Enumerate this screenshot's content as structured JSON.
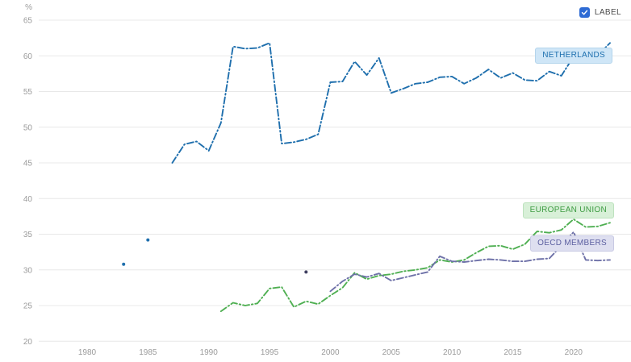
{
  "controls": {
    "label_text": "LABEL",
    "label_checked": true,
    "checkbox_color": "#2e6bd4"
  },
  "chart_data": {
    "type": "line",
    "unit": "%",
    "ylabel": "%",
    "ylim": [
      20,
      65
    ],
    "yticks": [
      20,
      25,
      30,
      35,
      40,
      45,
      50,
      55,
      60,
      65
    ],
    "xticks": [
      1980,
      1985,
      1990,
      1995,
      2000,
      2005,
      2010,
      2015,
      2020
    ],
    "grid": "horizontal",
    "legend_position": "inline-right-labels",
    "colors": {
      "grid": "#e8e8e8",
      "tick_text": "#9b9b9b"
    },
    "series": [
      {
        "name": "NETHERLANDS",
        "color": "#1f6fad",
        "style": "dash-dot",
        "isolated_points": [
          [
            1983,
            30.8
          ],
          [
            1985,
            34.2
          ]
        ],
        "points": [
          [
            1987,
            45.0
          ],
          [
            1988,
            47.6
          ],
          [
            1989,
            48.0
          ],
          [
            1990,
            46.7
          ],
          [
            1991,
            50.6
          ],
          [
            1992,
            61.3
          ],
          [
            1993,
            61.0
          ],
          [
            1994,
            61.1
          ],
          [
            1995,
            61.8
          ],
          [
            1996,
            47.7
          ],
          [
            1997,
            47.9
          ],
          [
            1998,
            48.3
          ],
          [
            1999,
            49.0
          ],
          [
            2000,
            56.3
          ],
          [
            2001,
            56.4
          ],
          [
            2002,
            59.2
          ],
          [
            2003,
            57.3
          ],
          [
            2004,
            59.7
          ],
          [
            2005,
            54.8
          ],
          [
            2006,
            55.4
          ],
          [
            2007,
            56.1
          ],
          [
            2008,
            56.3
          ],
          [
            2009,
            57.0
          ],
          [
            2010,
            57.1
          ],
          [
            2011,
            56.1
          ],
          [
            2012,
            56.9
          ],
          [
            2013,
            58.1
          ],
          [
            2014,
            56.9
          ],
          [
            2015,
            57.6
          ],
          [
            2016,
            56.6
          ],
          [
            2017,
            56.5
          ],
          [
            2018,
            57.8
          ],
          [
            2019,
            57.2
          ],
          [
            2020,
            59.9
          ],
          [
            2021,
            60.3
          ],
          [
            2022,
            60.1
          ],
          [
            2023,
            61.8
          ]
        ]
      },
      {
        "name": "EUROPEAN UNION",
        "color": "#4faf52",
        "style": "dash-dot",
        "isolated_points": [],
        "points": [
          [
            1991,
            24.2
          ],
          [
            1992,
            25.4
          ],
          [
            1993,
            25.0
          ],
          [
            1994,
            25.3
          ],
          [
            1995,
            27.4
          ],
          [
            1996,
            27.6
          ],
          [
            1997,
            24.8
          ],
          [
            1998,
            25.6
          ],
          [
            1999,
            25.2
          ],
          [
            2000,
            26.4
          ],
          [
            2001,
            27.5
          ],
          [
            2002,
            29.6
          ],
          [
            2003,
            28.7
          ],
          [
            2004,
            29.2
          ],
          [
            2005,
            29.4
          ],
          [
            2006,
            29.8
          ],
          [
            2007,
            30.0
          ],
          [
            2008,
            30.3
          ],
          [
            2009,
            31.4
          ],
          [
            2010,
            31.1
          ],
          [
            2011,
            31.4
          ],
          [
            2012,
            32.4
          ],
          [
            2013,
            33.3
          ],
          [
            2014,
            33.4
          ],
          [
            2015,
            32.9
          ],
          [
            2016,
            33.6
          ],
          [
            2017,
            35.4
          ],
          [
            2018,
            35.2
          ],
          [
            2019,
            35.6
          ],
          [
            2020,
            37.1
          ],
          [
            2021,
            36.0
          ],
          [
            2022,
            36.1
          ],
          [
            2023,
            36.6
          ]
        ]
      },
      {
        "name": "OECD MEMBERS",
        "color": "#6e71a8",
        "style": "dash-dot",
        "dot_color": "#3f3f60",
        "isolated_points": [
          [
            1998,
            29.7
          ]
        ],
        "points": [
          [
            2000,
            27.0
          ],
          [
            2001,
            28.4
          ],
          [
            2002,
            29.4
          ],
          [
            2003,
            29.0
          ],
          [
            2004,
            29.5
          ],
          [
            2005,
            28.5
          ],
          [
            2006,
            28.9
          ],
          [
            2007,
            29.3
          ],
          [
            2008,
            29.7
          ],
          [
            2009,
            31.9
          ],
          [
            2010,
            31.2
          ],
          [
            2011,
            31.1
          ],
          [
            2012,
            31.3
          ],
          [
            2013,
            31.5
          ],
          [
            2014,
            31.4
          ],
          [
            2015,
            31.2
          ],
          [
            2016,
            31.2
          ],
          [
            2017,
            31.5
          ],
          [
            2018,
            31.6
          ],
          [
            2019,
            33.4
          ],
          [
            2020,
            35.3
          ],
          [
            2021,
            31.4
          ],
          [
            2022,
            31.3
          ],
          [
            2023,
            31.4
          ]
        ]
      }
    ]
  }
}
